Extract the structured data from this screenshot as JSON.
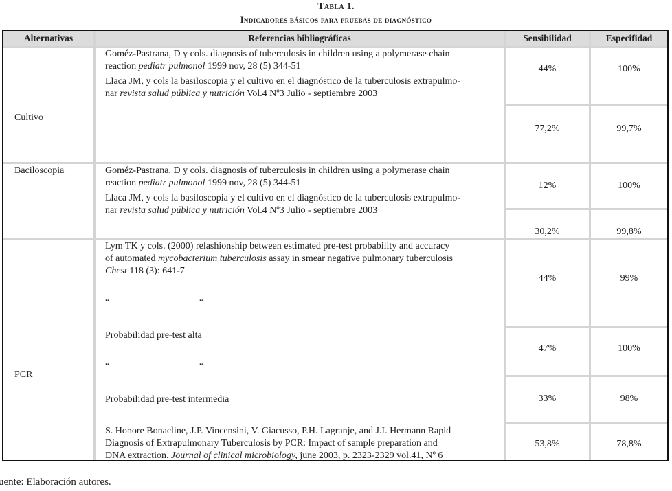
{
  "title": "Tabla 1.",
  "subtitle": "Indicadores básicos para pruebas de diagnóstico",
  "headers": [
    "Alternativas",
    "Referencias bibliográficas",
    "Sensibilidad",
    "Especifidad"
  ],
  "rows": {
    "cultivo": {
      "label": "Cultivo",
      "sens": [
        "44%",
        "77,2%"
      ],
      "espec": [
        "100%",
        "99,7%"
      ]
    },
    "bacilo": {
      "label": "Baciloscopia",
      "sens": [
        "12%",
        "30,2%"
      ],
      "espec": [
        "100%",
        "99,8%"
      ]
    },
    "pcr": {
      "label": "PCR",
      "sens": [
        "44%",
        "47%",
        "33%",
        "53,8%"
      ],
      "espec": [
        "99%",
        "100%",
        "98%",
        "78,8%"
      ]
    }
  },
  "refs": {
    "gomez": {
      "l1": "Goméz-Pastrana, D y cols. diagnosis of tuberculosis in children using a polymerase chain",
      "l2a": "reaction ",
      "l2i": "pediatr pulmonol",
      "l2b": " 1999 nov, 28 (5) 344-51"
    },
    "llaca": {
      "l1": "Llaca JM, y cols la basiloscopia y el cultivo en el diagnóstico de la tuberculosis extrapulmo-",
      "l2a": "nar ",
      "l2i": "revista salud pública y nutrición",
      "l2b": " Vol.4 Nº3 Julio - septiembre 2003"
    },
    "lym": {
      "l1": "Lym TK y cols. (2000) relashionship between estimated pre-test probability and accuracy",
      "l2a": "of automated ",
      "l2i": "mycobacterium tuberculosis",
      "l2b": " assay in smear negative pulmonary tuberculosis",
      "l3i": "Chest",
      "l3b": " 118 (3): 641-7"
    },
    "ditto": "“",
    "alta": "Probabilidad pre-test alta",
    "intermedia": "Probabilidad pre-test intermedia",
    "honore": {
      "l1": "S. Honore Bonacline, J.P. Vincensini, V. Giacusso, P.H. Lagranje, and J.I. Hermann Rapid",
      "l2": "Diagnosis of Extrapulmonary Tuberculosis by PCR: Impact of sample preparation and",
      "l3a": "DNA extraction. ",
      "l3i": "Journal of clinical microbiology,",
      "l3b": " june 2003, p. 2323-2329  vol.41, Nº 6"
    }
  },
  "footer": "uente: Elaboración autores."
}
